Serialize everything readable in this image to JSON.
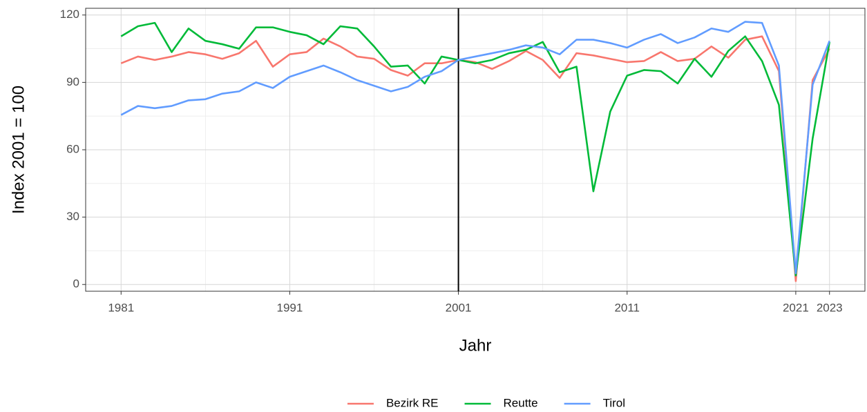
{
  "chart_data": {
    "type": "line",
    "xlabel": "Jahr",
    "ylabel": "Index 2001 = 100",
    "x": [
      1981,
      1982,
      1983,
      1984,
      1985,
      1986,
      1987,
      1988,
      1989,
      1990,
      1991,
      1992,
      1993,
      1994,
      1995,
      1996,
      1997,
      1998,
      1999,
      2000,
      2001,
      2002,
      2003,
      2004,
      2005,
      2006,
      2007,
      2008,
      2009,
      2010,
      2011,
      2012,
      2013,
      2014,
      2015,
      2016,
      2017,
      2018,
      2019,
      2020,
      2021,
      2022,
      2023
    ],
    "series": [
      {
        "name": "Bezirk RE",
        "color": "#F8766D",
        "values": [
          98.5,
          101.5,
          100,
          101.5,
          103.5,
          102.5,
          100.5,
          103,
          108.5,
          97,
          102.5,
          103.5,
          109.5,
          106,
          101.5,
          100.5,
          95.5,
          93,
          98.5,
          98.5,
          100,
          99,
          96,
          99.5,
          104,
          100,
          92,
          103,
          102,
          100.5,
          99,
          99.5,
          103.5,
          99.5,
          100.5,
          106,
          101,
          109,
          110.5,
          95,
          1.5,
          91,
          105
        ]
      },
      {
        "name": "Reutte",
        "color": "#00BA38",
        "values": [
          110.5,
          115,
          116.5,
          103.5,
          114,
          108.5,
          107,
          105,
          114.5,
          114.5,
          112.5,
          111,
          107,
          115,
          114,
          106,
          97,
          97.5,
          89.5,
          101.5,
          100,
          98.5,
          100,
          103,
          104.5,
          108,
          94.5,
          97,
          41.5,
          77,
          93,
          95.5,
          95,
          89.5,
          100.5,
          92.5,
          104,
          110.5,
          99.5,
          80,
          4,
          65,
          108
        ]
      },
      {
        "name": "Tirol",
        "color": "#619CFF",
        "values": [
          75.5,
          79.5,
          78.5,
          79.5,
          82,
          82.5,
          85,
          86,
          90,
          87.5,
          92.5,
          95,
          97.5,
          94.5,
          91,
          88.5,
          86,
          88,
          92.5,
          95,
          100,
          101.5,
          103,
          104.5,
          106.5,
          105.5,
          102.5,
          109,
          109,
          107.5,
          105.5,
          109,
          111.5,
          107.5,
          110,
          114,
          112.5,
          117,
          116.5,
          97.5,
          5,
          89,
          108.5
        ]
      }
    ],
    "xlim": [
      1978.9,
      2025.1
    ],
    "xticks": [
      1981,
      1991,
      2001,
      2011,
      2021,
      2023
    ],
    "ylim": [
      -3,
      123
    ],
    "yticks": [
      0,
      30,
      60,
      90,
      120
    ],
    "vline": 2001,
    "grid": true,
    "legend": "bottom"
  }
}
